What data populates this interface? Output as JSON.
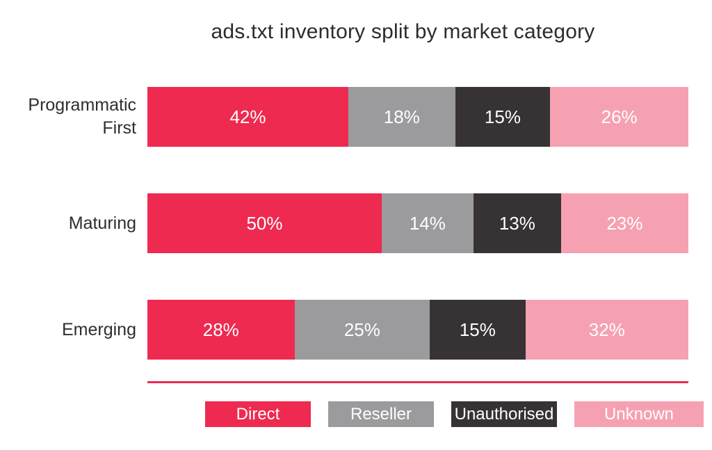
{
  "page": {
    "background_color": "#ffffff",
    "text_color": "#312d2e"
  },
  "chart_data": {
    "type": "bar",
    "orientation": "horizontal",
    "stacked": true,
    "unit": "%",
    "title": "ads.txt inventory split by market category",
    "categories": [
      "Programmatic First",
      "Maturing",
      "Emerging"
    ],
    "series": [
      {
        "name": "Direct",
        "color": "#ee2a50",
        "values": [
          42,
          50,
          28
        ],
        "labels": [
          "42%",
          "50%",
          "28%"
        ]
      },
      {
        "name": "Reseller",
        "color": "#9b9b9e",
        "values": [
          18,
          14,
          25
        ],
        "labels": [
          "18%",
          "14%",
          "25%"
        ]
      },
      {
        "name": "Unauthorised",
        "color": "#373335",
        "values": [
          15,
          13,
          15
        ],
        "labels": [
          "15%",
          "13%",
          "15%"
        ]
      },
      {
        "name": "Unknown",
        "color": "#f6a1b1",
        "values": [
          26,
          23,
          32
        ],
        "labels": [
          "26%",
          "23%",
          "32%"
        ]
      }
    ],
    "value_label_color": "#ffffff",
    "axis": {
      "x_min": 0,
      "x_max": 100,
      "gridlines": false
    },
    "legend_position": "bottom",
    "divider_color": "#ee2a50"
  }
}
